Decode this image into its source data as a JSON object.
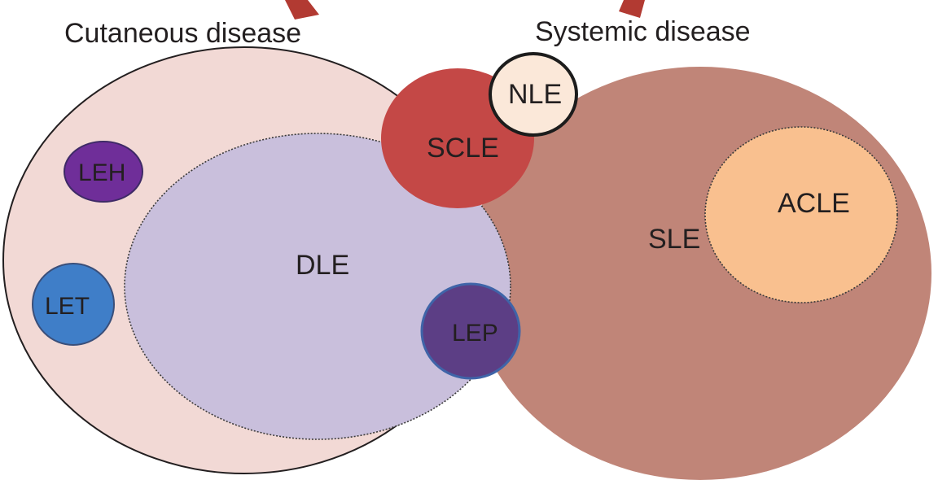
{
  "titles": {
    "cutaneous": "Cutaneous disease",
    "systemic": "Systemic disease"
  },
  "regions": {
    "cutaneous": {
      "label": "",
      "color": "#f2d9d5"
    },
    "dle": {
      "label": "DLE",
      "color": "#c9bfdc"
    },
    "sle": {
      "label": "SLE",
      "color": "#c08578"
    },
    "acle": {
      "label": "ACLE",
      "color": "#f9c08f"
    },
    "scle": {
      "label": "SCLE",
      "color": "#c44846"
    },
    "nle": {
      "label": "NLE",
      "color": "#fbe8d9"
    },
    "leh": {
      "label": "LEH",
      "color": "#6f2e99"
    },
    "let": {
      "label": "LET",
      "color": "#3f7ec8"
    },
    "lep": {
      "label": "LEP",
      "color": "#5c3e85"
    }
  },
  "arrow_color": "#b23a32"
}
